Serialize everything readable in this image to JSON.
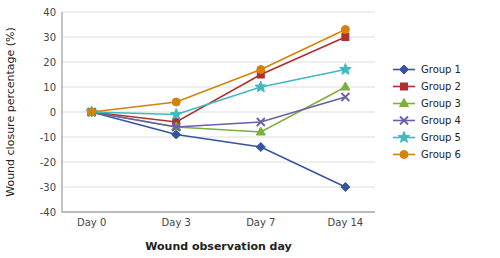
{
  "chart_data": {
    "type": "line",
    "xlabel": "Wound observation  day",
    "ylabel": "Wound closure percentage (%)",
    "categories": [
      "Day 0",
      "Day 3",
      "Day 7",
      "Day 14"
    ],
    "series": [
      {
        "name": "Group 1",
        "color": "#3655A0",
        "marker": "diamond",
        "values": [
          0,
          -9,
          -14,
          -30
        ]
      },
      {
        "name": "Group 2",
        "color": "#B03030",
        "marker": "square",
        "values": [
          0,
          -4,
          15,
          30
        ]
      },
      {
        "name": "Group 3",
        "color": "#7DAF3A",
        "marker": "triangle",
        "values": [
          0,
          -6,
          -8,
          10
        ]
      },
      {
        "name": "Group 4",
        "color": "#6A5EAA",
        "marker": "x",
        "values": [
          0,
          -6,
          -4,
          6
        ]
      },
      {
        "name": "Group 5",
        "color": "#40B8C0",
        "marker": "star",
        "values": [
          0,
          -1,
          10,
          17
        ]
      },
      {
        "name": "Group 6",
        "color": "#D4820A",
        "marker": "circle",
        "values": [
          0,
          4,
          17,
          33
        ]
      }
    ],
    "ylim": [
      -40,
      40
    ],
    "yticks": [
      -40,
      -30,
      -20,
      -10,
      0,
      10,
      20,
      30,
      40
    ],
    "grid": true,
    "legend": "right"
  }
}
